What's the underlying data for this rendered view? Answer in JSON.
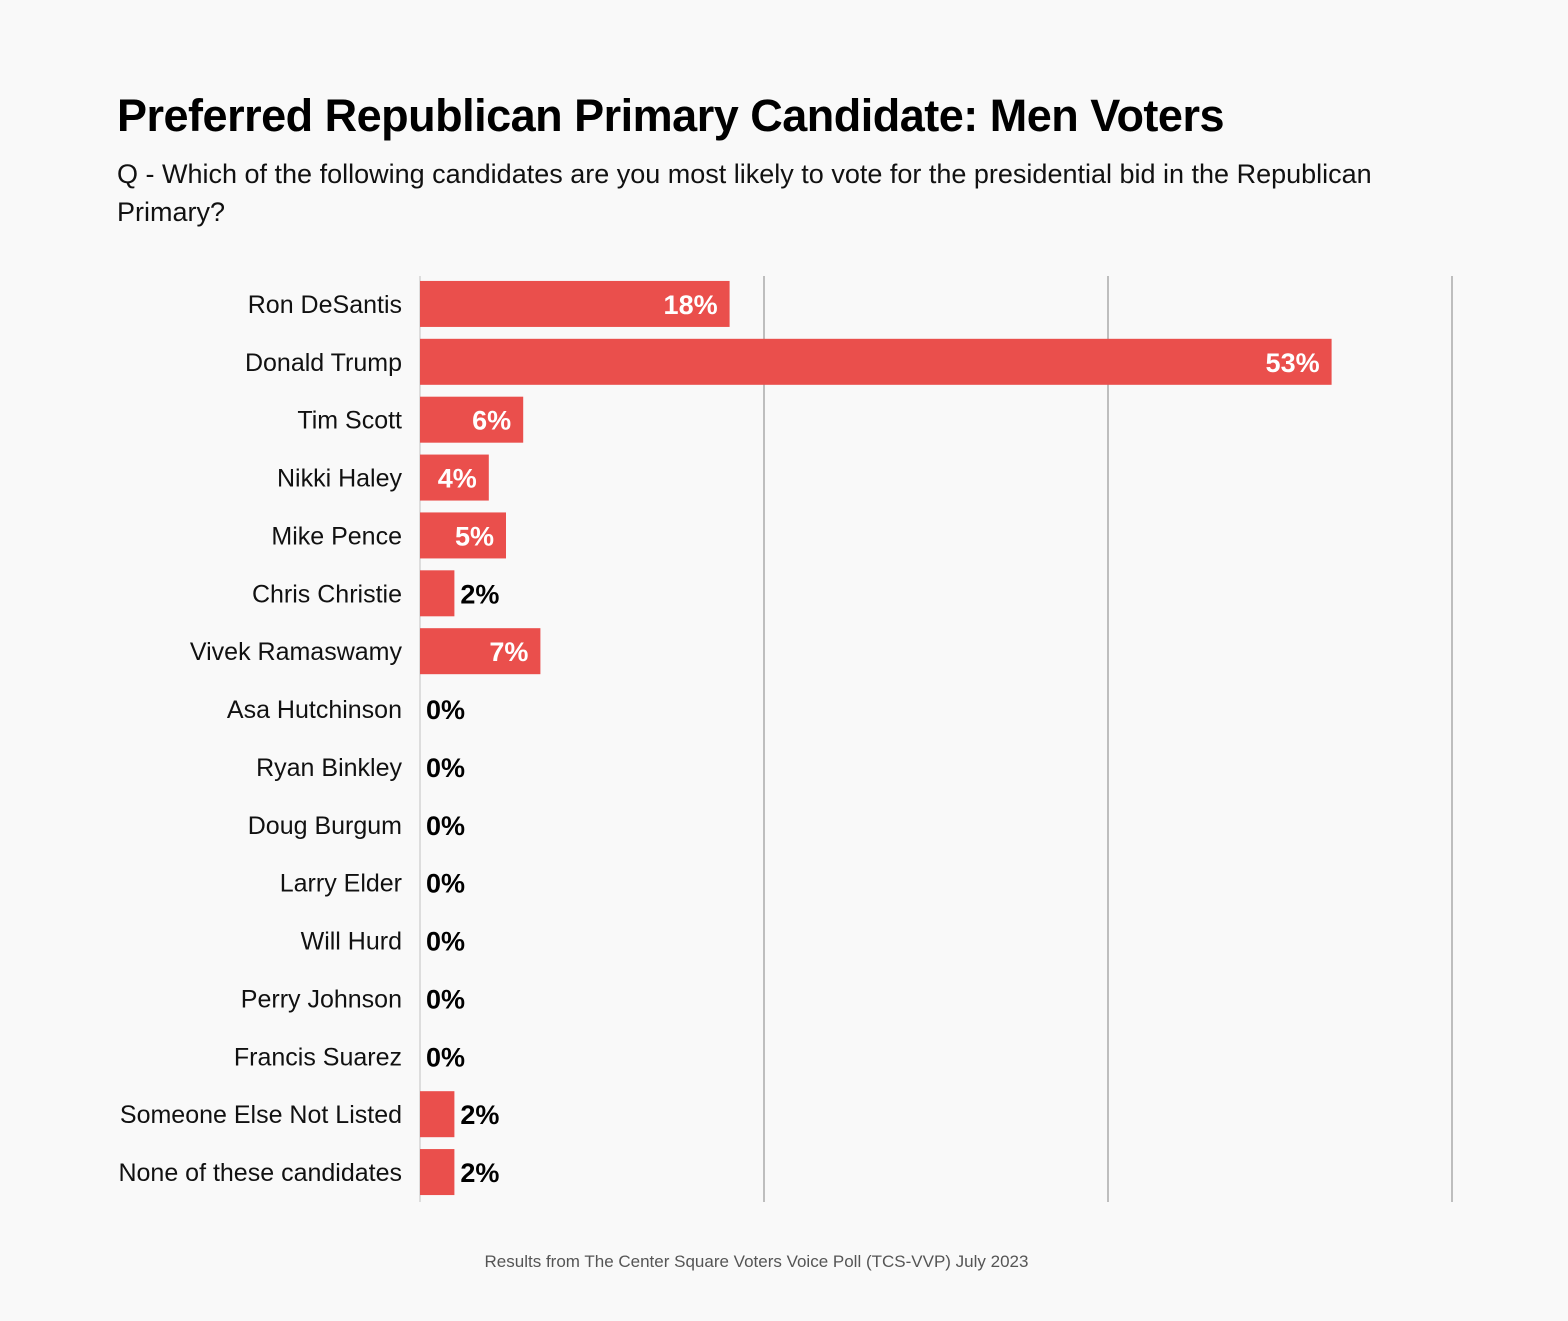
{
  "chart_data": {
    "type": "bar",
    "orientation": "horizontal",
    "title": "Preferred Republican Primary Candidate: Men Voters",
    "subtitle": "Q - Which of the following candidates are you most likely to vote for the presidential bid in the Republican Primary?",
    "categories": [
      "Ron DeSantis",
      "Donald Trump",
      "Tim Scott",
      "Nikki Haley",
      "Mike Pence",
      "Chris Christie",
      "Vivek Ramaswamy",
      "Asa Hutchinson",
      "Ryan Binkley",
      "Doug Burgum",
      "Larry Elder",
      "Will Hurd",
      "Perry Johnson",
      "Francis Suarez",
      "Someone Else Not Listed",
      "None of these candidates"
    ],
    "values": [
      18,
      53,
      6,
      4,
      5,
      2,
      7,
      0,
      0,
      0,
      0,
      0,
      0,
      0,
      2,
      2
    ],
    "data_labels": [
      "18%",
      "53%",
      "6%",
      "4%",
      "5%",
      "2%",
      "7%",
      "0%",
      "0%",
      "0%",
      "0%",
      "0%",
      "0%",
      "0%",
      "2%",
      "2%"
    ],
    "xlim": [
      0,
      60
    ],
    "gridlines": [
      20,
      40,
      60
    ],
    "grid": true,
    "bar_color": "#ea4f4c",
    "footer": "Results from The Center Square Voters Voice Poll (TCS-VVP) July 2023"
  }
}
